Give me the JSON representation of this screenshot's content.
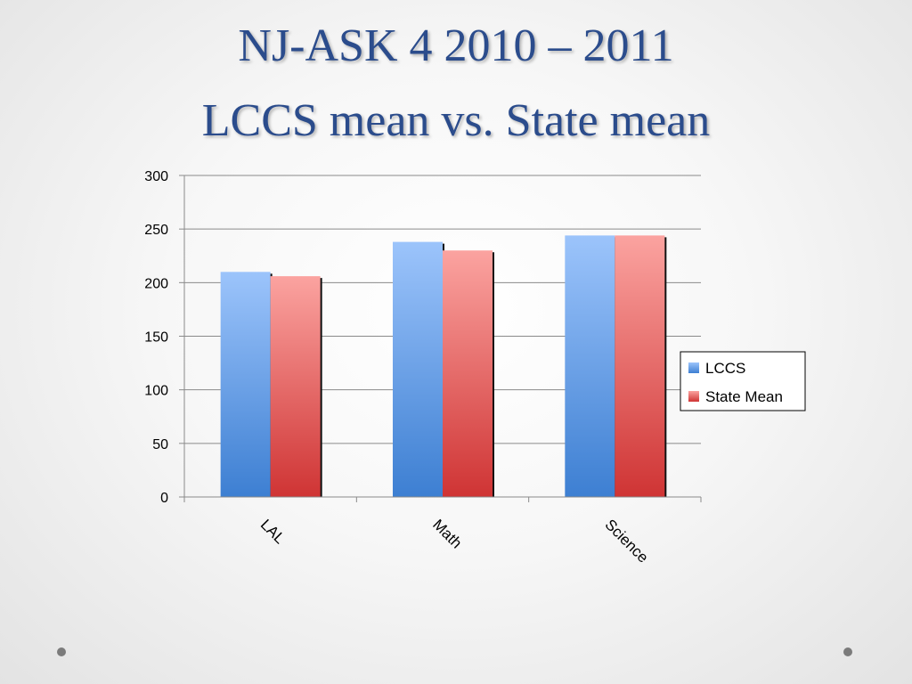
{
  "slide": {
    "title_line1": "NJ-ASK 4 2010 – 2011",
    "title_line2": "LCCS mean vs. State mean"
  },
  "colors": {
    "lccs_top": "#9cc4fb",
    "lccs_bottom": "#3d7fd2",
    "state_top": "#fba3a0",
    "state_bottom": "#cf3434",
    "title": "#2b4c8c"
  },
  "chart_data": {
    "type": "bar",
    "categories": [
      "LAL",
      "Math",
      "Science"
    ],
    "series": [
      {
        "name": "LCCS",
        "values": [
          210,
          238,
          244
        ]
      },
      {
        "name": "State Mean",
        "values": [
          206,
          230,
          244
        ]
      }
    ],
    "title": "",
    "xlabel": "",
    "ylabel": "",
    "ylim": [
      0,
      300
    ],
    "yticks": [
      0,
      50,
      100,
      150,
      200,
      250,
      300
    ],
    "grid": true,
    "legend_position": "right"
  }
}
